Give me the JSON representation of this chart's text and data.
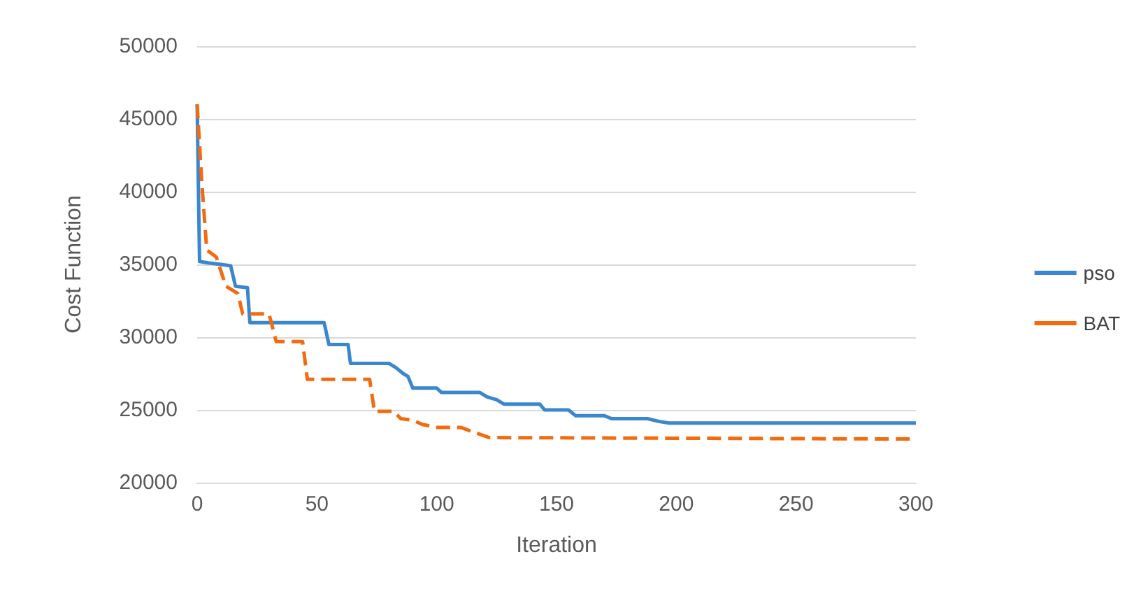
{
  "chart_data": {
    "type": "line",
    "xlabel": "Iteration",
    "ylabel": "Cost Function",
    "xlim": [
      0,
      300
    ],
    "xticks": [
      0,
      50,
      100,
      150,
      200,
      250,
      300
    ],
    "ylim": [
      20000,
      50000
    ],
    "yticks": [
      20000,
      25000,
      30000,
      35000,
      40000,
      45000,
      50000
    ],
    "grid": "y",
    "legend": "right",
    "marker": "none",
    "series": [
      {
        "name": "pso",
        "color": "#3a87cf",
        "line_style": "solid",
        "x": [
          0,
          1,
          5,
          10,
          14,
          16,
          21,
          22,
          53,
          55,
          63,
          64,
          80,
          83,
          86,
          88,
          90,
          100,
          102,
          118,
          121,
          125,
          128,
          143,
          145,
          155,
          158,
          170,
          173,
          188,
          193,
          197,
          300
        ],
        "values": [
          46000,
          35200,
          35100,
          35000,
          34900,
          33500,
          33400,
          31000,
          31000,
          29500,
          29500,
          28200,
          28200,
          27900,
          27500,
          27300,
          26500,
          26500,
          26200,
          26200,
          25900,
          25700,
          25400,
          25400,
          25000,
          25000,
          24600,
          24600,
          24400,
          24400,
          24200,
          24100,
          24100
        ]
      },
      {
        "name": "BAT",
        "color": "#f26b10",
        "line_style": "dashed",
        "x": [
          0,
          2,
          4,
          8,
          12,
          17,
          19,
          30,
          33,
          44,
          46,
          72,
          74,
          82,
          85,
          90,
          94,
          100,
          110,
          115,
          122,
          300
        ],
        "values": [
          46000,
          40500,
          36000,
          35500,
          33500,
          33000,
          31600,
          31600,
          29700,
          29700,
          27100,
          27100,
          24900,
          24900,
          24400,
          24300,
          24000,
          23800,
          23800,
          23500,
          23100,
          23000
        ]
      }
    ]
  }
}
